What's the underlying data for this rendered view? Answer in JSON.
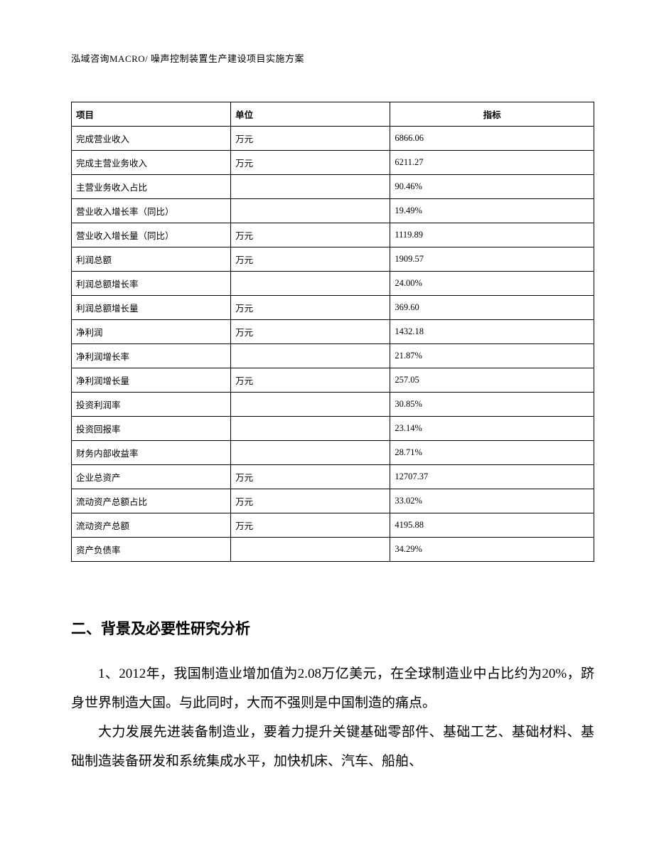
{
  "header": "泓域咨询MACRO/ 噪声控制装置生产建设项目实施方案",
  "table": {
    "columns": [
      "项目",
      "单位",
      "指标"
    ],
    "rows": [
      {
        "item": "完成营业收入",
        "unit": "万元",
        "value": "6866.06"
      },
      {
        "item": "完成主营业务收入",
        "unit": "万元",
        "value": "6211.27"
      },
      {
        "item": "主营业务收入占比",
        "unit": "",
        "value": "90.46%"
      },
      {
        "item": "营业收入增长率（同比）",
        "unit": "",
        "value": "19.49%"
      },
      {
        "item": "营业收入增长量（同比）",
        "unit": "万元",
        "value": "1119.89"
      },
      {
        "item": "利润总额",
        "unit": "万元",
        "value": "1909.57"
      },
      {
        "item": "利润总额增长率",
        "unit": "",
        "value": "24.00%"
      },
      {
        "item": "利润总额增长量",
        "unit": "万元",
        "value": "369.60"
      },
      {
        "item": "净利润",
        "unit": "万元",
        "value": "1432.18"
      },
      {
        "item": "净利润增长率",
        "unit": "",
        "value": "21.87%"
      },
      {
        "item": "净利润增长量",
        "unit": "万元",
        "value": "257.05"
      },
      {
        "item": "投资利润率",
        "unit": "",
        "value": "30.85%"
      },
      {
        "item": "投资回报率",
        "unit": "",
        "value": "23.14%"
      },
      {
        "item": "财务内部收益率",
        "unit": "",
        "value": "28.71%"
      },
      {
        "item": "企业总资产",
        "unit": "万元",
        "value": "12707.37"
      },
      {
        "item": "流动资产总额占比",
        "unit": "万元",
        "value": "33.02%"
      },
      {
        "item": "流动资产总额",
        "unit": "万元",
        "value": "4195.88"
      },
      {
        "item": "资产负债率",
        "unit": "",
        "value": "34.29%"
      }
    ]
  },
  "section_title": "二、背景及必要性研究分析",
  "paragraphs": [
    "1、2012年，我国制造业增加值为2.08万亿美元，在全球制造业中占比约为20%，跻身世界制造大国。与此同时，大而不强则是中国制造的痛点。",
    "大力发展先进装备制造业，要着力提升关键基础零部件、基础工艺、基础材料、基础制造装备研发和系统集成水平，加快机床、汽车、船舶、"
  ]
}
